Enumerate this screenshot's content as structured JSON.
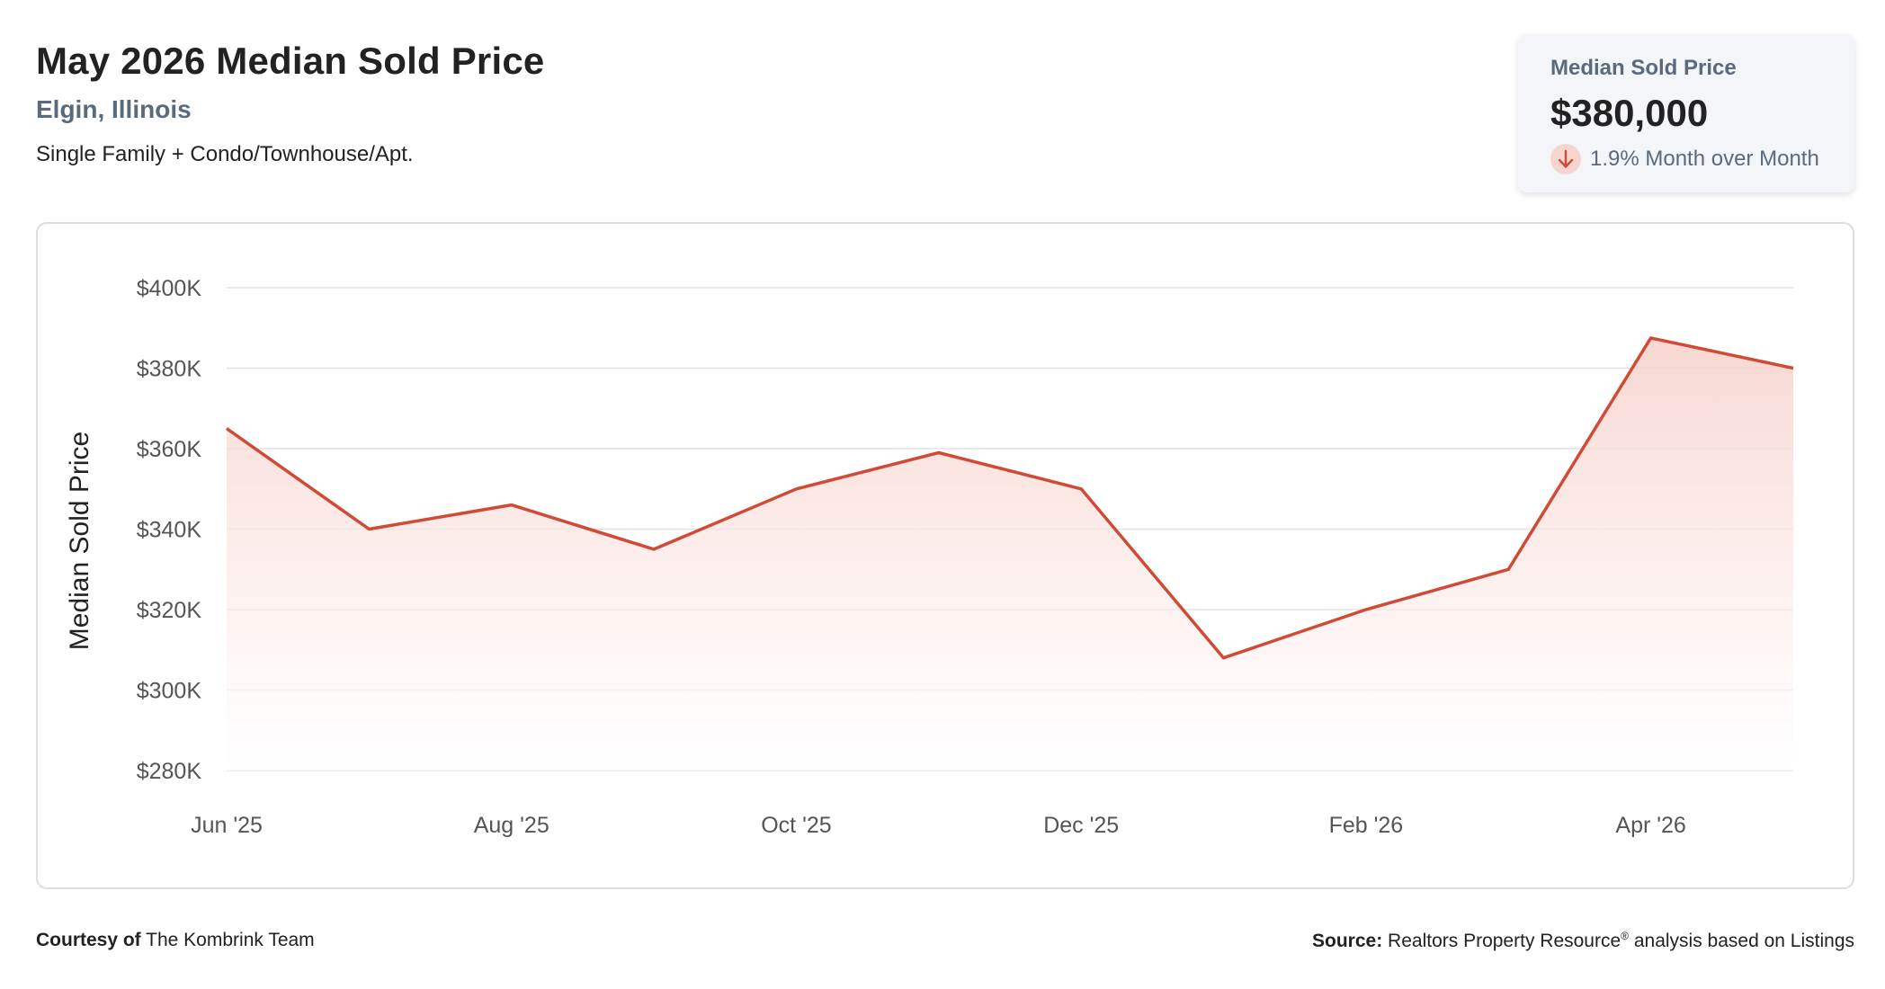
{
  "header": {
    "title": "May 2026 Median Sold Price",
    "location": "Elgin, Illinois",
    "subtitle": "Single Family + Condo/Townhouse/Apt."
  },
  "kpi": {
    "label": "Median Sold Price",
    "value": "$380,000",
    "change_text": "1.9% Month over Month",
    "direction_icon": "arrow-down-icon"
  },
  "footer": {
    "courtesy_label": "Courtesy of",
    "courtesy_name": "The Kombrink Team",
    "source_label": "Source:",
    "source_text_pre": "Realtors Property Resource",
    "source_sup": "®",
    "source_text_post": "analysis based on Listings"
  },
  "colors": {
    "line": "#d04a35",
    "fill_top": "#f6d0ca",
    "grid": "#e2e2e2"
  },
  "chart_data": {
    "type": "area",
    "ylabel": "Median Sold Price",
    "xlabel": "",
    "grid": true,
    "ylim": [
      280000,
      400000
    ],
    "y_ticks": [
      280000,
      300000,
      320000,
      340000,
      360000,
      380000,
      400000
    ],
    "y_tick_labels": [
      "$280K",
      "$300K",
      "$320K",
      "$340K",
      "$360K",
      "$380K",
      "$400K"
    ],
    "x_tick_labels": [
      "Jun '25",
      "Aug '25",
      "Oct '25",
      "Dec '25",
      "Feb '26",
      "Apr '26"
    ],
    "x_tick_indices": [
      0,
      2,
      4,
      6,
      8,
      10
    ],
    "series": [
      {
        "x": [
          "Jun '25",
          "Jul '25",
          "Aug '25",
          "Sep '25",
          "Oct '25",
          "Nov '25",
          "Dec '25",
          "Jan '26",
          "Feb '26",
          "Mar '26",
          "Apr '26",
          "May '26"
        ],
        "values": [
          365000,
          340000,
          346000,
          335000,
          350000,
          359000,
          350000,
          308000,
          320000,
          330000,
          387500,
          380000
        ]
      }
    ]
  }
}
